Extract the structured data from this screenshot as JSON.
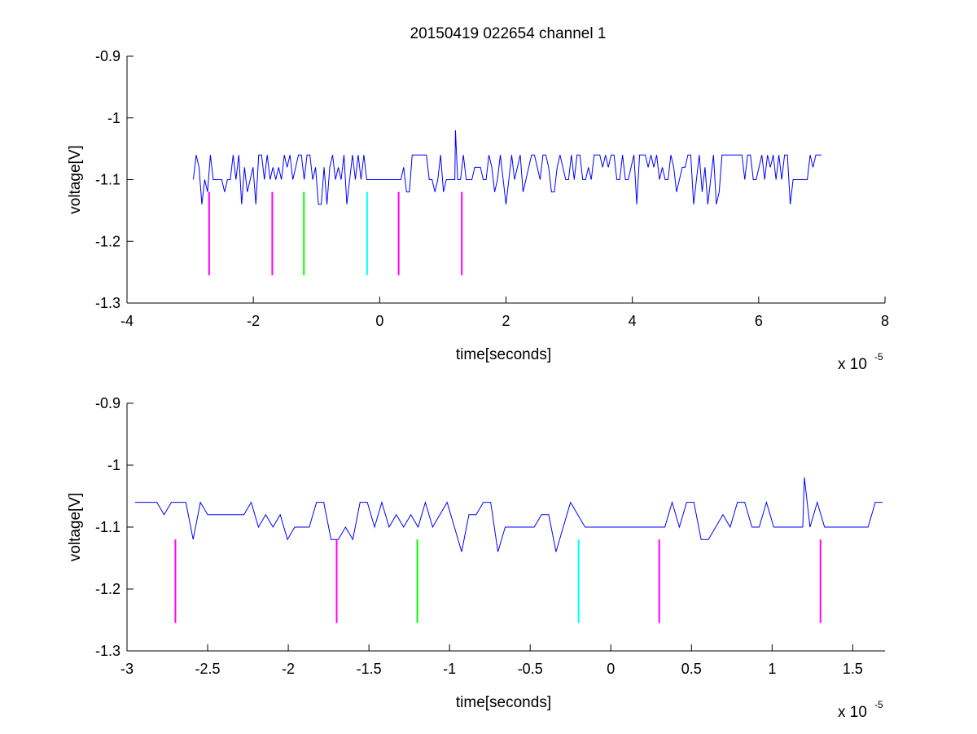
{
  "figure": {
    "title": "20150419 022654 channel 1"
  },
  "chart_data": [
    {
      "type": "line",
      "xlabel": "time[seconds]",
      "ylabel": "voltage[V]",
      "x_exponent_label": "x 10",
      "x_exponent": "-5",
      "xlim": [
        -4,
        8
      ],
      "ylim": [
        -1.3,
        -0.9
      ],
      "xticks": [
        -4,
        -2,
        0,
        2,
        4,
        6,
        8
      ],
      "xtick_labels": [
        "-4",
        "-2",
        "0",
        "2",
        "4",
        "6",
        "8"
      ],
      "yticks": [
        -0.9,
        -1,
        -1.1,
        -1.2,
        -1.3
      ],
      "ytick_labels": [
        "-0.9",
        "-1",
        "-1.1",
        "-1.2",
        "-1.3"
      ],
      "signal": {
        "color": "#0000ff",
        "x_start": -2.95,
        "x_end": 7.0,
        "baseline": -1.1,
        "levels": [
          -1.06,
          -1.08,
          -1.1,
          -1.12,
          -1.14
        ],
        "spike": {
          "x": 1.2,
          "y": -1.02
        },
        "quiet_spans": [
          [
            -0.25,
            0.35
          ],
          [
            1.05,
            1.25
          ],
          [
            6.6,
            6.75
          ]
        ]
      },
      "markers": [
        {
          "x": -2.7,
          "y_top": -1.12,
          "y_bottom": -1.255,
          "color": "#ff00ff"
        },
        {
          "x": -1.7,
          "y_top": -1.12,
          "y_bottom": -1.255,
          "color": "#ff00ff"
        },
        {
          "x": -1.2,
          "y_top": -1.12,
          "y_bottom": -1.255,
          "color": "#00ff00"
        },
        {
          "x": -0.2,
          "y_top": -1.12,
          "y_bottom": -1.255,
          "color": "#00ffff"
        },
        {
          "x": 0.3,
          "y_top": -1.12,
          "y_bottom": -1.255,
          "color": "#ff00ff"
        },
        {
          "x": 1.3,
          "y_top": -1.12,
          "y_bottom": -1.255,
          "color": "#ff00ff"
        }
      ]
    },
    {
      "type": "line",
      "xlabel": "time[seconds]",
      "ylabel": "voltage[V]",
      "x_exponent_label": "x 10",
      "x_exponent": "-5",
      "xlim": [
        -3.0,
        1.7
      ],
      "ylim": [
        -1.3,
        -0.9
      ],
      "xticks": [
        -3,
        -2.5,
        -2,
        -1.5,
        -1,
        -0.5,
        0,
        0.5,
        1,
        1.5
      ],
      "xtick_labels": [
        "-3",
        "-2.5",
        "-2",
        "-1.5",
        "-1",
        "-0.5",
        "0",
        "0.5",
        "1",
        "1.5"
      ],
      "yticks": [
        -0.9,
        -1,
        -1.1,
        -1.2,
        -1.3
      ],
      "ytick_labels": [
        "-0.9",
        "-1",
        "-1.1",
        "-1.2",
        "-1.3"
      ],
      "signal": {
        "color": "#0000ff",
        "x_start": -2.95,
        "x_end": 1.7,
        "baseline": -1.1,
        "levels": [
          -1.06,
          -1.08,
          -1.1,
          -1.12,
          -1.14
        ],
        "spike": {
          "x": 1.2,
          "y": -1.02
        },
        "quiet_spans": [
          [
            -0.2,
            0.35
          ],
          [
            1.05,
            1.25
          ],
          [
            1.3,
            1.55
          ]
        ]
      },
      "markers": [
        {
          "x": -2.7,
          "y_top": -1.12,
          "y_bottom": -1.255,
          "color": "#ff00ff"
        },
        {
          "x": -1.7,
          "y_top": -1.12,
          "y_bottom": -1.255,
          "color": "#ff00ff"
        },
        {
          "x": -1.2,
          "y_top": -1.12,
          "y_bottom": -1.255,
          "color": "#00ff00"
        },
        {
          "x": -0.2,
          "y_top": -1.12,
          "y_bottom": -1.255,
          "color": "#00ffff"
        },
        {
          "x": 0.3,
          "y_top": -1.12,
          "y_bottom": -1.255,
          "color": "#ff00ff"
        },
        {
          "x": 1.3,
          "y_top": -1.12,
          "y_bottom": -1.255,
          "color": "#ff00ff"
        }
      ]
    }
  ]
}
